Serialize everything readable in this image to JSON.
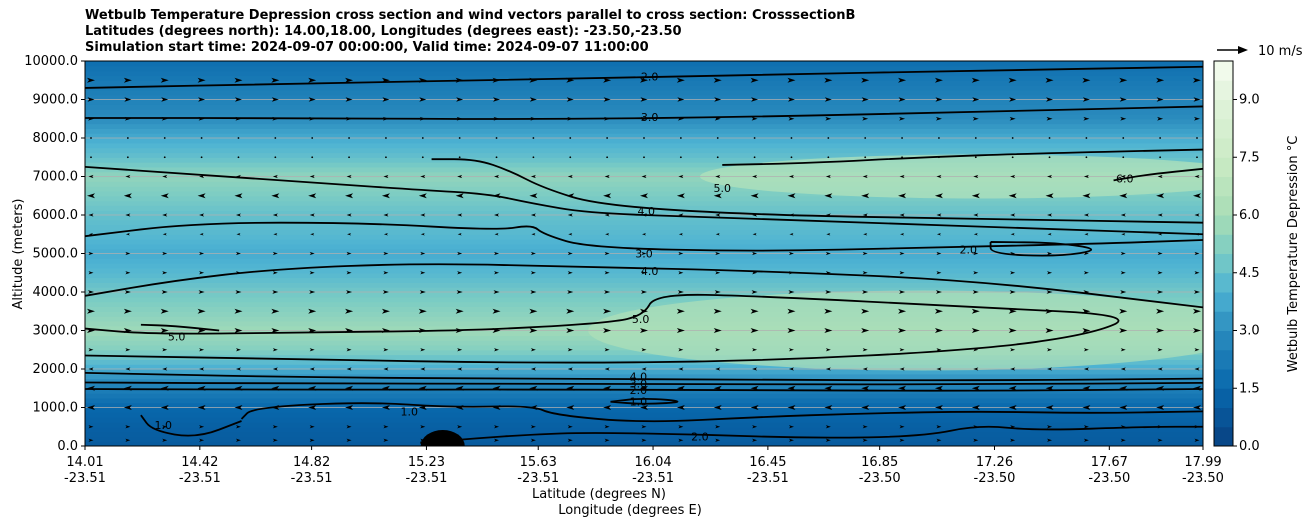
{
  "chart_data": {
    "type": "contour",
    "title_lines": [
      "Wetbulb Temperature Depression cross section and wind vectors parallel to cross section: CrosssectionB",
      "Latitudes (degrees north): 14.00,18.00, Longitudes (degrees east): -23.50,-23.50",
      "Simulation start time: 2024-09-07 00:00:00, Valid time: 2024-09-07 11:00:00"
    ],
    "ylabel": "Altitude (meters)",
    "xlabel_lat": "Latitude (degrees N)",
    "xlabel_lon": "Longitude (degrees E)",
    "ylim": [
      0,
      10000
    ],
    "y_ticks": [
      "0.0",
      "1000.0",
      "2000.0",
      "3000.0",
      "4000.0",
      "5000.0",
      "6000.0",
      "7000.0",
      "8000.0",
      "9000.0",
      "10000.0"
    ],
    "x_ticks": [
      {
        "lat": "14.01",
        "lon": "-23.51",
        "frac": 0.0
      },
      {
        "lat": "14.42",
        "lon": "-23.51",
        "frac": 0.1027
      },
      {
        "lat": "14.82",
        "lon": "-23.51",
        "frac": 0.2027
      },
      {
        "lat": "15.23",
        "lon": "-23.51",
        "frac": 0.3054
      },
      {
        "lat": "15.63",
        "lon": "-23.51",
        "frac": 0.4054
      },
      {
        "lat": "16.04",
        "lon": "-23.51",
        "frac": 0.5081
      },
      {
        "lat": "16.45",
        "lon": "-23.51",
        "frac": 0.6108
      },
      {
        "lat": "16.85",
        "lon": "-23.50",
        "frac": 0.7108
      },
      {
        "lat": "17.26",
        "lon": "-23.50",
        "frac": 0.8135
      },
      {
        "lat": "17.67",
        "lon": "-23.50",
        "frac": 0.9162
      },
      {
        "lat": "17.99",
        "lon": "-23.50",
        "frac": 1.0
      }
    ],
    "colorbar": {
      "label": "Wetbulb Temperature Depression °C",
      "min": 0,
      "max": 10,
      "ticks": [
        "0.0",
        "1.5",
        "3.0",
        "4.5",
        "6.0",
        "7.5",
        "9.0"
      ],
      "tick_values": [
        0,
        1.5,
        3,
        4.5,
        6,
        7.5,
        9
      ]
    },
    "wind_key_label": "10 m/s",
    "layers": [
      {
        "z": 0,
        "depression": 1.0
      },
      {
        "z": 500,
        "depression": 1.2
      },
      {
        "z": 1000,
        "depression": 1.5
      },
      {
        "z": 1500,
        "depression": 2.5
      },
      {
        "z": 2000,
        "depression": 3.8
      },
      {
        "z": 2500,
        "depression": 5.2
      },
      {
        "z": 3000,
        "depression": 5.8
      },
      {
        "z": 3500,
        "depression": 5.3
      },
      {
        "z": 4000,
        "depression": 4.8
      },
      {
        "z": 4500,
        "depression": 4.2
      },
      {
        "z": 5000,
        "depression": 3.8
      },
      {
        "z": 5500,
        "depression": 4.2
      },
      {
        "z": 6000,
        "depression": 4.5
      },
      {
        "z": 6500,
        "depression": 5.0
      },
      {
        "z": 7000,
        "depression": 5.5
      },
      {
        "z": 7500,
        "depression": 4.5
      },
      {
        "z": 8000,
        "depression": 3.8
      },
      {
        "z": 8500,
        "depression": 3.0
      },
      {
        "z": 9000,
        "depression": 2.6
      },
      {
        "z": 9500,
        "depression": 2.2
      },
      {
        "z": 10000,
        "depression": 1.8
      }
    ],
    "contours": [
      {
        "level": "2.0",
        "label": "2.0",
        "label_pos": [
          0.505,
          9600
        ],
        "pts": [
          [
            0,
            9300
          ],
          [
            0.2,
            9420
          ],
          [
            0.4,
            9520
          ],
          [
            0.6,
            9640
          ],
          [
            0.8,
            9750
          ],
          [
            1,
            9850
          ]
        ]
      },
      {
        "level": "3.0",
        "label": "3.0",
        "label_pos": [
          0.505,
          8550
        ],
        "pts": [
          [
            0,
            8520
          ],
          [
            0.2,
            8520
          ],
          [
            0.4,
            8480
          ],
          [
            0.6,
            8550
          ],
          [
            0.8,
            8680
          ],
          [
            1,
            8820
          ]
        ]
      },
      {
        "level": "4.0",
        "label": "",
        "label_pos": null,
        "pts": [
          [
            0,
            7250
          ],
          [
            0.1,
            7050
          ],
          [
            0.2,
            6850
          ],
          [
            0.3,
            6650
          ],
          [
            0.36,
            6550
          ],
          [
            0.4,
            6300
          ],
          [
            0.45,
            6050
          ],
          [
            0.55,
            5950
          ],
          [
            0.7,
            5800
          ],
          [
            0.85,
            5650
          ],
          [
            1,
            5500
          ]
        ]
      },
      {
        "level": "4.0",
        "label": "4.0",
        "label_pos": [
          0.502,
          6100
        ],
        "pts": [
          [
            0.31,
            7450
          ],
          [
            0.35,
            7450
          ],
          [
            0.38,
            7150
          ],
          [
            0.41,
            6700
          ],
          [
            0.46,
            6250
          ],
          [
            0.6,
            6000
          ],
          [
            0.8,
            5900
          ],
          [
            1,
            5800
          ]
        ]
      },
      {
        "level": "5.0",
        "label": "5.0",
        "label_pos": [
          0.57,
          6700
        ],
        "pts": [
          [
            0.57,
            7300
          ],
          [
            0.65,
            7350
          ],
          [
            0.75,
            7500
          ],
          [
            0.85,
            7600
          ],
          [
            1,
            7700
          ]
        ]
      },
      {
        "level": "6.0",
        "label": "6.0",
        "label_pos": [
          0.93,
          6950
        ],
        "pts": [
          [
            0.92,
            6900
          ],
          [
            0.95,
            7050
          ],
          [
            1,
            7200
          ]
        ]
      },
      {
        "level": "3.0",
        "label": "3.0",
        "label_pos": [
          0.5,
          5000
        ],
        "pts": [
          [
            0,
            5450
          ],
          [
            0.1,
            5800
          ],
          [
            0.25,
            5800
          ],
          [
            0.37,
            5600
          ],
          [
            0.4,
            5750
          ],
          [
            0.41,
            5500
          ],
          [
            0.45,
            5150
          ],
          [
            0.6,
            5050
          ],
          [
            0.75,
            5150
          ],
          [
            0.9,
            5250
          ],
          [
            1,
            5350
          ]
        ]
      },
      {
        "level": "2.0",
        "label": "2.0",
        "label_pos": [
          0.79,
          5100
        ],
        "pts": [
          [
            0.81,
            5300
          ],
          [
            0.87,
            5280
          ],
          [
            0.91,
            5100
          ],
          [
            0.87,
            4920
          ],
          [
            0.81,
            4990
          ],
          [
            0.81,
            5300
          ]
        ]
      },
      {
        "level": "4.0",
        "label": "4.0",
        "label_pos": [
          0.505,
          4550
        ],
        "pts": [
          [
            0,
            3900
          ],
          [
            0.08,
            4300
          ],
          [
            0.17,
            4600
          ],
          [
            0.3,
            4750
          ],
          [
            0.45,
            4650
          ],
          [
            0.6,
            4550
          ],
          [
            0.8,
            4300
          ],
          [
            1,
            3600
          ]
        ]
      },
      {
        "level": "5.0",
        "label": "5.0",
        "label_pos": [
          0.497,
          3300
        ],
        "pts": [
          [
            0,
            3050
          ],
          [
            0.06,
            2900
          ],
          [
            0.2,
            2950
          ],
          [
            0.35,
            3000
          ],
          [
            0.47,
            3200
          ],
          [
            0.5,
            3400
          ],
          [
            0.51,
            3950
          ],
          [
            0.6,
            3900
          ],
          [
            0.8,
            3600
          ],
          [
            0.94,
            3400
          ],
          [
            0.9,
            2900
          ],
          [
            0.8,
            2500
          ],
          [
            0.6,
            2200
          ],
          [
            0.4,
            2150
          ],
          [
            0.2,
            2250
          ],
          [
            0,
            2350
          ]
        ]
      },
      {
        "level": "5.0",
        "label": "5.0",
        "label_pos": [
          0.082,
          2850
        ],
        "pts": [
          [
            0.05,
            3150
          ],
          [
            0.08,
            3120
          ],
          [
            0.12,
            3000
          ]
        ]
      },
      {
        "level": "4.0",
        "label": "4.0",
        "label_pos": [
          0.495,
          1800
        ],
        "pts": [
          [
            0,
            1900
          ],
          [
            0.2,
            1780
          ],
          [
            0.4,
            1750
          ],
          [
            0.6,
            1720
          ],
          [
            0.8,
            1700
          ],
          [
            1,
            1750
          ]
        ]
      },
      {
        "level": "3.0",
        "label": "3.0",
        "label_pos": [
          0.495,
          1620
        ],
        "pts": [
          [
            0,
            1650
          ],
          [
            0.2,
            1620
          ],
          [
            0.4,
            1620
          ],
          [
            0.6,
            1600
          ],
          [
            0.8,
            1600
          ],
          [
            1,
            1640
          ]
        ]
      },
      {
        "level": "2.0",
        "label": "2.0",
        "label_pos": [
          0.495,
          1450
        ],
        "pts": [
          [
            0,
            1480
          ],
          [
            0.2,
            1460
          ],
          [
            0.4,
            1470
          ],
          [
            0.6,
            1450
          ],
          [
            0.8,
            1430
          ],
          [
            1,
            1480
          ]
        ]
      },
      {
        "level": "1.0",
        "label": "1.0",
        "label_pos": [
          0.495,
          1150
        ],
        "pts": [
          [
            0.47,
            1150
          ],
          [
            0.5,
            1250
          ],
          [
            0.54,
            1150
          ],
          [
            0.5,
            1080
          ],
          [
            0.47,
            1150
          ]
        ]
      },
      {
        "level": "1.0",
        "label": "1.0",
        "label_pos": [
          0.29,
          900
        ],
        "pts": [
          [
            0.14,
            700
          ],
          [
            0.15,
            1000
          ],
          [
            0.25,
            1150
          ],
          [
            0.33,
            1000
          ],
          [
            0.4,
            1050
          ],
          [
            0.42,
            800
          ],
          [
            0.5,
            600
          ],
          [
            0.6,
            750
          ],
          [
            0.7,
            850
          ],
          [
            0.8,
            900
          ],
          [
            0.9,
            850
          ],
          [
            1,
            900
          ]
        ]
      },
      {
        "level": "2.0",
        "label": "2.0",
        "label_pos": [
          0.55,
          250
        ],
        "pts": [
          [
            0.3,
            80
          ],
          [
            0.35,
            200
          ],
          [
            0.4,
            300
          ],
          [
            0.45,
            350
          ],
          [
            0.55,
            300
          ],
          [
            0.65,
            200
          ],
          [
            0.75,
            250
          ],
          [
            0.8,
            550
          ],
          [
            0.85,
            400
          ],
          [
            0.95,
            500
          ],
          [
            1,
            500
          ]
        ]
      },
      {
        "level": "1.0",
        "label": "1.0",
        "label_pos": [
          0.07,
          550
        ],
        "pts": [
          [
            0.05,
            800
          ],
          [
            0.06,
            400
          ],
          [
            0.1,
            200
          ],
          [
            0.14,
            650
          ]
        ]
      }
    ],
    "wind_rows": [
      {
        "z": 150,
        "dir": "right",
        "speed": 0.5
      },
      {
        "z": 500,
        "dir": "right",
        "speed": 0.5
      },
      {
        "z": 1000,
        "dir": "left",
        "speed": 0.8
      },
      {
        "z": 1500,
        "dir": "left",
        "speed": 0.8
      },
      {
        "z": 2000,
        "dir": "left",
        "speed": 0.5
      },
      {
        "z": 2500,
        "dir": "right",
        "speed": 0.5
      },
      {
        "z": 3000,
        "dir": "right",
        "speed": 0.8
      },
      {
        "z": 3500,
        "dir": "right",
        "speed": 0.8
      },
      {
        "z": 4000,
        "dir": "right",
        "speed": 0.6
      },
      {
        "z": 4500,
        "dir": "right",
        "speed": 0.5
      },
      {
        "z": 5000,
        "dir": "right",
        "speed": 0.5
      },
      {
        "z": 5500,
        "dir": "left",
        "speed": 0.4
      },
      {
        "z": 6000,
        "dir": "left",
        "speed": 0.5
      },
      {
        "z": 6500,
        "dir": "left",
        "speed": 0.8
      },
      {
        "z": 7000,
        "dir": "left",
        "speed": 0.5
      },
      {
        "z": 7500,
        "dir": "none",
        "speed": 0
      },
      {
        "z": 8000,
        "dir": "none",
        "speed": 0
      },
      {
        "z": 8500,
        "dir": "right",
        "speed": 0.6
      },
      {
        "z": 9000,
        "dir": "right",
        "speed": 0.7
      },
      {
        "z": 9500,
        "dir": "right",
        "speed": 0.8
      }
    ]
  }
}
